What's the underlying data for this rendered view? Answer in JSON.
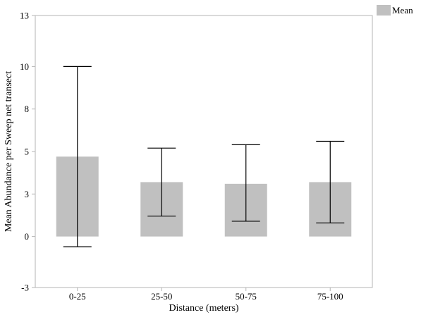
{
  "chart_data": {
    "type": "bar",
    "categories": [
      "0-25",
      "25-50",
      "50-75",
      "75-100"
    ],
    "series": [
      {
        "name": "Mean",
        "values": [
          4.7,
          3.2,
          3.1,
          3.2
        ],
        "error_low": [
          -0.6,
          1.2,
          0.9,
          0.8
        ],
        "error_high": [
          10.0,
          5.2,
          5.4,
          5.6
        ],
        "color": "#c0c0c0"
      }
    ],
    "xlabel": "Distance (meters)",
    "ylabel": "Mean Abundance per Sweep net transect",
    "ylim": [
      -3,
      13
    ],
    "yticks": [
      -3,
      0,
      3,
      5,
      8,
      10,
      13
    ],
    "ytick_positions": [
      -3,
      0,
      2.5,
      5,
      7.5,
      10,
      13
    ],
    "grid": false,
    "legend": {
      "placement": "top-right outside",
      "entries": [
        "Mean"
      ]
    }
  },
  "colors": {
    "bar": "#c0c0c0",
    "frame": "#b5b5b5",
    "whisker": "#000000"
  }
}
